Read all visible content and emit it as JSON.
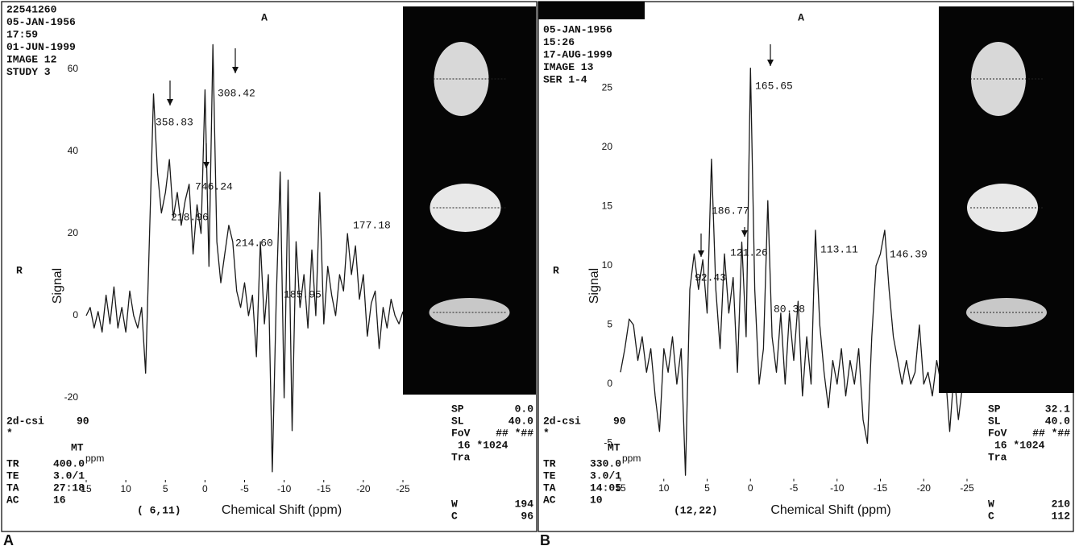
{
  "chart_data": [
    {
      "type": "line",
      "x_label": "Chemical Shift (ppm)",
      "y_label": "Signal",
      "color": "#1a1a1a",
      "x": [
        15,
        14.5,
        14,
        13.5,
        13,
        12.5,
        12,
        11.5,
        11,
        10.5,
        10,
        9.5,
        9,
        8.5,
        8,
        7.5,
        7,
        6.5,
        6,
        5.5,
        5,
        4.5,
        4,
        3.5,
        3,
        2.5,
        2,
        1.5,
        1,
        0.5,
        0,
        -0.5,
        -1,
        -1.5,
        -2,
        -2.5,
        -3,
        -3.5,
        -4,
        -4.5,
        -5,
        -5.5,
        -6,
        -6.5,
        -7,
        -7.5,
        -8,
        -8.5,
        -9,
        -9.5,
        -10,
        -10.5,
        -11,
        -11.5,
        -12,
        -12.5,
        -13,
        -13.5,
        -14,
        -14.5,
        -15,
        -15.5,
        -16,
        -16.5,
        -17,
        -17.5,
        -18,
        -18.5,
        -19,
        -19.5,
        -20,
        -20.5,
        -21,
        -21.5,
        -22,
        -22.5,
        -23,
        -23.5,
        -24,
        -24.5,
        -25
      ],
      "values": [
        0,
        2,
        -3,
        1,
        -4,
        5,
        -2,
        7,
        -3,
        2,
        -4,
        6,
        0,
        -3,
        2,
        -14,
        20,
        54,
        35,
        25,
        30,
        38,
        24,
        30,
        22,
        28,
        32,
        15,
        27,
        20,
        55,
        12,
        66,
        18,
        8,
        15,
        22,
        18,
        6,
        2,
        8,
        0,
        5,
        -10,
        18,
        -2,
        10,
        -38,
        4,
        35,
        -20,
        33,
        -28,
        18,
        2,
        10,
        -3,
        16,
        0,
        30,
        -2,
        12,
        5,
        0,
        10,
        6,
        20,
        10,
        17,
        4,
        10,
        -5,
        3,
        6,
        -8,
        2,
        -3,
        4,
        0,
        -2,
        1
      ],
      "xlim": [
        15,
        -25
      ],
      "xticks": [
        15,
        10,
        5,
        0,
        -5,
        -10,
        -15,
        -20,
        -25
      ],
      "ylim": [
        -40,
        75
      ],
      "yticks": [
        -20,
        0,
        20,
        40,
        60
      ],
      "peak_labels": [
        "358.83",
        "746.24",
        "308.42",
        "218.96",
        "214.60",
        "185.95",
        "177.18"
      ],
      "orientation_top": "A",
      "orientation_left": "R",
      "header_text": [
        "22541260",
        "05-JAN-1956",
        "17:59",
        "01-JUN-1999",
        "IMAGE 12",
        "STUDY 3"
      ],
      "sequence": [
        "2d-csi",
        "90"
      ],
      "star": "*",
      "mt": "MT",
      "ppm": "ppm",
      "scan_params": [
        [
          "TR",
          "400.0"
        ],
        [
          "TE",
          "3.0/1"
        ],
        [
          "TA",
          "27:18"
        ],
        [
          "AC",
          "16"
        ]
      ],
      "position": "( 6,11)",
      "geometry": [
        [
          "SP",
          "0.0"
        ],
        [
          "SL",
          "40.0"
        ],
        [
          "FoV",
          "## *##"
        ]
      ],
      "matrix": "16 *1024",
      "plane": "Tra",
      "window": [
        [
          "W",
          "194"
        ],
        [
          "C",
          "96"
        ]
      ]
    },
    {
      "type": "line",
      "x_label": "Chemical Shift (ppm)",
      "y_label": "Signal",
      "color": "#1a1a1a",
      "x": [
        15,
        14.5,
        14,
        13.5,
        13,
        12.5,
        12,
        11.5,
        11,
        10.5,
        10,
        9.5,
        9,
        8.5,
        8,
        7.5,
        7,
        6.5,
        6,
        5.5,
        5,
        4.5,
        4,
        3.5,
        3,
        2.5,
        2,
        1.5,
        1,
        0.5,
        0,
        -0.5,
        -1,
        -1.5,
        -2,
        -2.5,
        -3,
        -3.5,
        -4,
        -4.5,
        -5,
        -5.5,
        -6,
        -6.5,
        -7,
        -7.5,
        -8,
        -8.5,
        -9,
        -9.5,
        -10,
        -10.5,
        -11,
        -11.5,
        -12,
        -12.5,
        -13,
        -13.5,
        -14,
        -14.5,
        -15,
        -15.5,
        -16,
        -16.5,
        -17,
        -17.5,
        -18,
        -18.5,
        -19,
        -19.5,
        -20,
        -20.5,
        -21,
        -21.5,
        -22,
        -22.5,
        -23,
        -23.5,
        -24,
        -24.5,
        -25
      ],
      "values": [
        1,
        3,
        5.5,
        5,
        2,
        4,
        1,
        3,
        -1,
        -4,
        3,
        1,
        4,
        0,
        3,
        -7.7,
        8,
        11,
        8,
        10.5,
        6,
        19,
        8,
        3,
        11,
        6,
        9,
        1,
        12,
        4,
        26.7,
        8,
        0,
        3,
        15.5,
        4,
        1,
        6,
        0,
        6,
        2,
        7,
        -1,
        4,
        0,
        13,
        5,
        1,
        -2,
        2,
        0,
        3,
        -1,
        2,
        0,
        3,
        -3,
        -5,
        4,
        10,
        11,
        13,
        8,
        4,
        2,
        0,
        2,
        0,
        1,
        5,
        0,
        1,
        -1,
        2,
        0,
        1,
        -4,
        1,
        -3,
        0,
        1
      ],
      "xlim": [
        15,
        -25
      ],
      "xticks": [
        15,
        10,
        5,
        0,
        -5,
        -10,
        -15,
        -20,
        -25
      ],
      "ylim": [
        -8,
        31.5
      ],
      "yticks": [
        -5,
        0,
        5,
        10,
        15,
        20,
        25
      ],
      "peak_labels": [
        "186.77",
        "165.65",
        "121.26",
        "113.11",
        "146.39",
        "92.43",
        "80.38"
      ],
      "orientation_top": "A",
      "orientation_left": "R",
      "header_text": [
        "05-JAN-1956",
        "15:26",
        "17-AUG-1999",
        "IMAGE 13",
        "SER 1-4"
      ],
      "sequence": [
        "2d-csi",
        "90"
      ],
      "star": "*",
      "mt": "MT",
      "ppm": "ppm",
      "scan_params": [
        [
          "TR",
          "330.0"
        ],
        [
          "TE",
          "3.0/1"
        ],
        [
          "TA",
          "14:05"
        ],
        [
          "AC",
          "10"
        ]
      ],
      "position": "(12,22)",
      "geometry": [
        [
          "SP",
          "32.1"
        ],
        [
          "SL",
          "40.0"
        ],
        [
          "FoV",
          "## *##"
        ]
      ],
      "matrix": "16 *1024",
      "plane": "Tra",
      "window": [
        [
          "W",
          "210"
        ],
        [
          "C",
          "112"
        ]
      ]
    }
  ],
  "panel_labels": [
    "A",
    "B"
  ]
}
